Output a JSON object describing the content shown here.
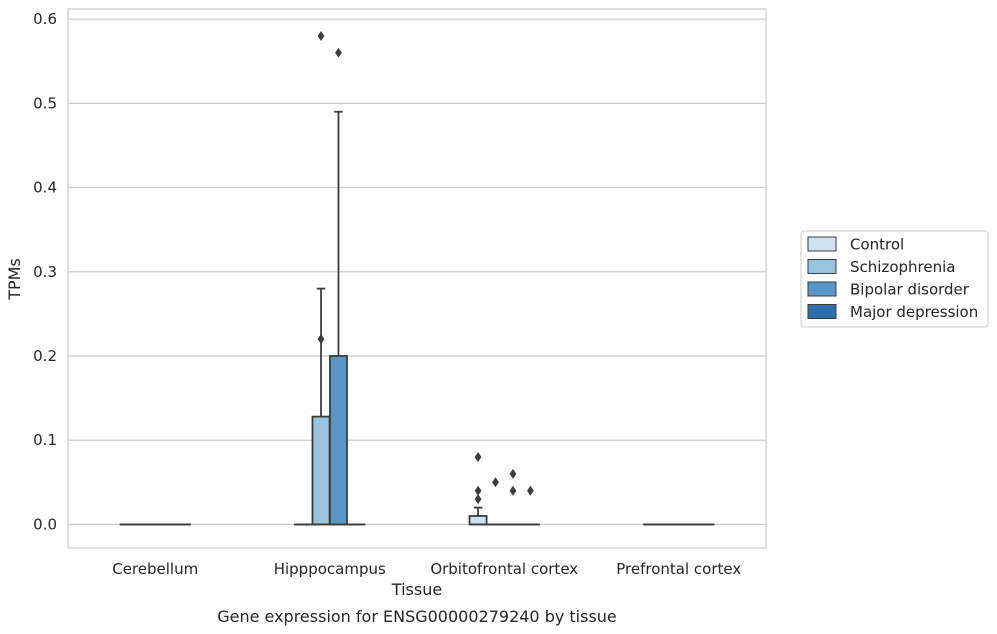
{
  "chart_data": {
    "type": "box",
    "title": "",
    "caption": "Gene expression for ENSG00000279240 by tissue",
    "xlabel": "Tissue",
    "ylabel": "TPMs",
    "ylim": [
      -0.028,
      0.612
    ],
    "yticks": [
      0.0,
      0.1,
      0.2,
      0.3,
      0.4,
      0.5,
      0.6
    ],
    "ytick_labels": [
      "0.0",
      "0.1",
      "0.2",
      "0.3",
      "0.4",
      "0.5",
      "0.6"
    ],
    "grid": "horizontal",
    "legend_position": "right",
    "categories": [
      "Cerebellum",
      "Hipppocampus",
      "Orbitofrontal cortex",
      "Prefrontal cortex"
    ],
    "series": [
      {
        "name": "Control",
        "color": "#d0e1f2",
        "boxes": [
          {
            "q1": 0,
            "median": 0,
            "q3": 0,
            "whislo": 0,
            "whishi": 0,
            "fliers": []
          },
          {
            "q1": 0,
            "median": 0,
            "q3": 0,
            "whislo": 0,
            "whishi": 0,
            "fliers": []
          },
          {
            "q1": 0,
            "median": 0,
            "q3": 0.01,
            "whislo": 0,
            "whishi": 0.02,
            "fliers": [
              0.03,
              0.04,
              0.08
            ]
          },
          {
            "q1": 0,
            "median": 0,
            "q3": 0,
            "whislo": 0,
            "whishi": 0,
            "fliers": []
          }
        ]
      },
      {
        "name": "Schizophrenia",
        "color": "#9ac3de",
        "boxes": [
          {
            "q1": 0,
            "median": 0,
            "q3": 0,
            "whislo": 0,
            "whishi": 0,
            "fliers": []
          },
          {
            "q1": 0,
            "median": 0,
            "q3": 0.128,
            "whislo": 0,
            "whishi": 0.28,
            "fliers": [
              0.22,
              0.58
            ]
          },
          {
            "q1": 0,
            "median": 0,
            "q3": 0,
            "whislo": 0,
            "whishi": 0,
            "fliers": [
              0.05
            ]
          },
          {
            "q1": 0,
            "median": 0,
            "q3": 0,
            "whislo": 0,
            "whishi": 0,
            "fliers": []
          }
        ]
      },
      {
        "name": "Bipolar disorder",
        "color": "#5a96c5",
        "boxes": [
          {
            "q1": 0,
            "median": 0,
            "q3": 0,
            "whislo": 0,
            "whishi": 0,
            "fliers": []
          },
          {
            "q1": 0,
            "median": 0,
            "q3": 0.2,
            "whislo": 0,
            "whishi": 0.49,
            "fliers": [
              0.56
            ]
          },
          {
            "q1": 0,
            "median": 0,
            "q3": 0,
            "whislo": 0,
            "whishi": 0,
            "fliers": [
              0.04,
              0.06
            ]
          },
          {
            "q1": 0,
            "median": 0,
            "q3": 0,
            "whislo": 0,
            "whishi": 0,
            "fliers": []
          }
        ]
      },
      {
        "name": "Major depression",
        "color": "#2f6ea8",
        "boxes": [
          {
            "q1": 0,
            "median": 0,
            "q3": 0,
            "whislo": 0,
            "whishi": 0,
            "fliers": []
          },
          {
            "q1": 0,
            "median": 0,
            "q3": 0,
            "whislo": 0,
            "whishi": 0,
            "fliers": []
          },
          {
            "q1": 0,
            "median": 0,
            "q3": 0,
            "whislo": 0,
            "whishi": 0,
            "fliers": [
              0.04
            ]
          },
          {
            "q1": 0,
            "median": 0,
            "q3": 0,
            "whislo": 0,
            "whishi": 0,
            "fliers": []
          }
        ]
      }
    ]
  }
}
